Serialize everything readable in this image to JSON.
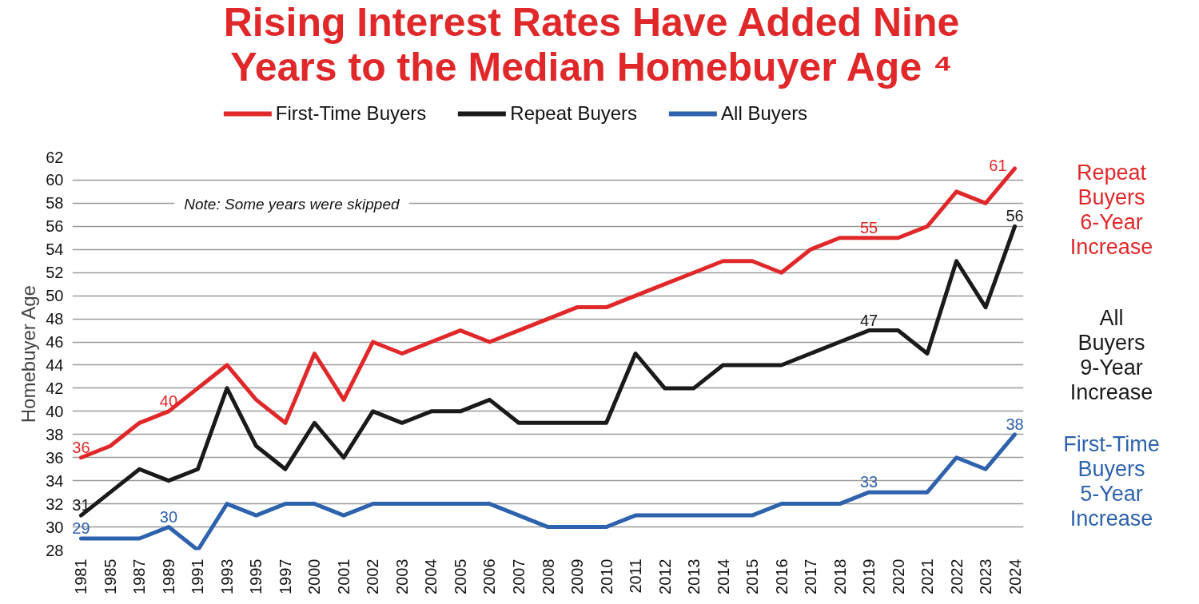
{
  "chart_data": {
    "type": "line",
    "title": "Rising Interest Rates Have Added Nine Years to the Median Homebuyer Age ⁴",
    "ylabel": "Homebuyer Age",
    "categories": [
      "1981",
      "1985",
      "1987",
      "1989",
      "1991",
      "1993",
      "1995",
      "1997",
      "2000",
      "2001",
      "2002",
      "2003",
      "2004",
      "2005",
      "2006",
      "2007",
      "2008",
      "2009",
      "2010",
      "2011",
      "2012",
      "2013",
      "2014",
      "2015",
      "2016",
      "2017",
      "2018",
      "2019",
      "2020",
      "2021",
      "2022",
      "2023",
      "2024"
    ],
    "series": [
      {
        "name": "First-Time Buyers",
        "color": "#e0282a",
        "values": [
          36,
          37,
          39,
          40,
          42,
          44,
          41,
          39,
          45,
          41,
          46,
          45,
          46,
          47,
          46,
          47,
          48,
          49,
          49,
          50,
          51,
          52,
          53,
          53,
          52,
          54,
          55,
          55,
          55,
          56,
          59,
          58,
          61
        ],
        "value_labels": [
          "36",
          null,
          null,
          "40",
          null,
          null,
          null,
          null,
          null,
          null,
          null,
          null,
          null,
          null,
          null,
          null,
          null,
          null,
          null,
          null,
          null,
          null,
          null,
          null,
          null,
          null,
          null,
          "55",
          null,
          null,
          null,
          null,
          "61"
        ]
      },
      {
        "name": "Repeat Buyers",
        "color": "#1a1a1a",
        "values": [
          31,
          33,
          35,
          34,
          35,
          42,
          37,
          35,
          39,
          36,
          40,
          39,
          40,
          40,
          41,
          39,
          39,
          39,
          39,
          45,
          42,
          42,
          44,
          44,
          44,
          45,
          46,
          47,
          47,
          45,
          53,
          49,
          56
        ],
        "value_labels": [
          "31",
          null,
          null,
          null,
          null,
          null,
          null,
          null,
          null,
          null,
          null,
          null,
          null,
          null,
          null,
          null,
          null,
          null,
          null,
          null,
          null,
          null,
          null,
          null,
          null,
          null,
          null,
          "47",
          null,
          null,
          null,
          null,
          "56"
        ]
      },
      {
        "name": "All Buyers",
        "color": "#2e62ad",
        "values": [
          29,
          29,
          29,
          30,
          28,
          32,
          31,
          32,
          32,
          31,
          32,
          32,
          32,
          32,
          32,
          31,
          30,
          30,
          30,
          31,
          31,
          31,
          31,
          31,
          32,
          32,
          32,
          33,
          33,
          33,
          36,
          35,
          38
        ],
        "value_labels": [
          "29",
          null,
          null,
          "30",
          null,
          null,
          null,
          null,
          null,
          null,
          null,
          null,
          null,
          null,
          null,
          null,
          null,
          null,
          null,
          null,
          null,
          null,
          null,
          null,
          null,
          null,
          null,
          "33",
          null,
          null,
          null,
          null,
          "38"
        ]
      }
    ],
    "ylim": [
      28,
      62
    ],
    "yticks": [
      28,
      30,
      32,
      34,
      36,
      38,
      40,
      42,
      44,
      46,
      48,
      50,
      52,
      54,
      56,
      58,
      60,
      62
    ],
    "grid": "y",
    "legend": "top",
    "marker": "none",
    "line_style": "solid",
    "annotations": [
      "Note: Some years were skipped",
      "Repeat Buyers 6-Year Increase",
      "All Buyers 9-Year Increase",
      "First-Time Buyers 5-Year Increase"
    ]
  }
}
